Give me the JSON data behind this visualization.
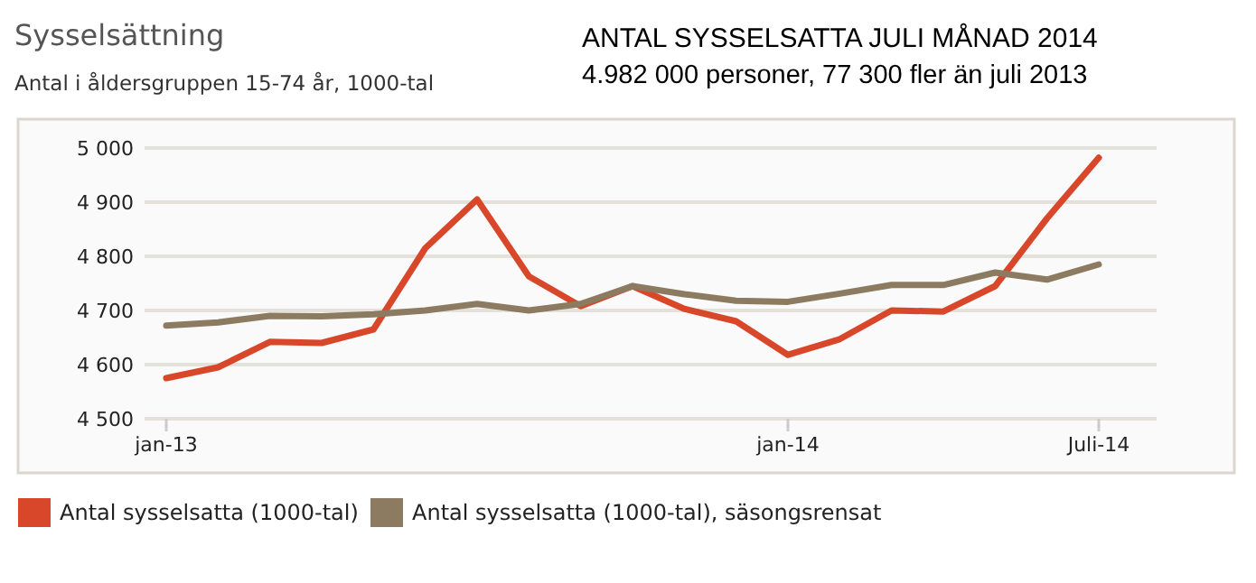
{
  "chart_data": {
    "type": "line",
    "title": "Sysselsättning",
    "subtitle": "Antal i åldersgruppen 15-74 år, 1000-tal",
    "annotations": [
      "ANTAL SYSSELSATTA JULI MÅNAD 2014",
      "4.982 000 personer, 77 300 fler än juli 2013"
    ],
    "categories": [
      "jan-13",
      null,
      null,
      null,
      null,
      null,
      null,
      null,
      null,
      null,
      null,
      null,
      "jan-14",
      null,
      null,
      null,
      null,
      null,
      "Juli-14"
    ],
    "series": [
      {
        "name": "Antal sysselsatta (1000-tal)",
        "color": "#d9472b",
        "values": [
          4575,
          4595,
          4642,
          4640,
          4665,
          4815,
          4905,
          4763,
          4708,
          4745,
          4703,
          4680,
          4618,
          4647,
          4700,
          4698,
          4745,
          4870,
          4982
        ]
      },
      {
        "name": "Antal sysselsatta (1000-tal), säsongsrensat",
        "color": "#8c7b60",
        "values": [
          4672,
          4678,
          4690,
          4689,
          4693,
          4700,
          4712,
          4700,
          4712,
          4745,
          4730,
          4718,
          4716,
          4731,
          4747,
          4747,
          4770,
          4757,
          4785
        ]
      }
    ],
    "ylim": [
      4500,
      5000
    ],
    "yticks": [
      {
        "value": 4500,
        "label": "4 500"
      },
      {
        "value": 4600,
        "label": "4 600"
      },
      {
        "value": 4700,
        "label": "4 700"
      },
      {
        "value": 4800,
        "label": "4 800"
      },
      {
        "value": 4900,
        "label": "4 900"
      },
      {
        "value": 5000,
        "label": "5 000"
      }
    ],
    "grid": "y",
    "legend": "bottom",
    "marker": "none",
    "line_style": "solid"
  }
}
